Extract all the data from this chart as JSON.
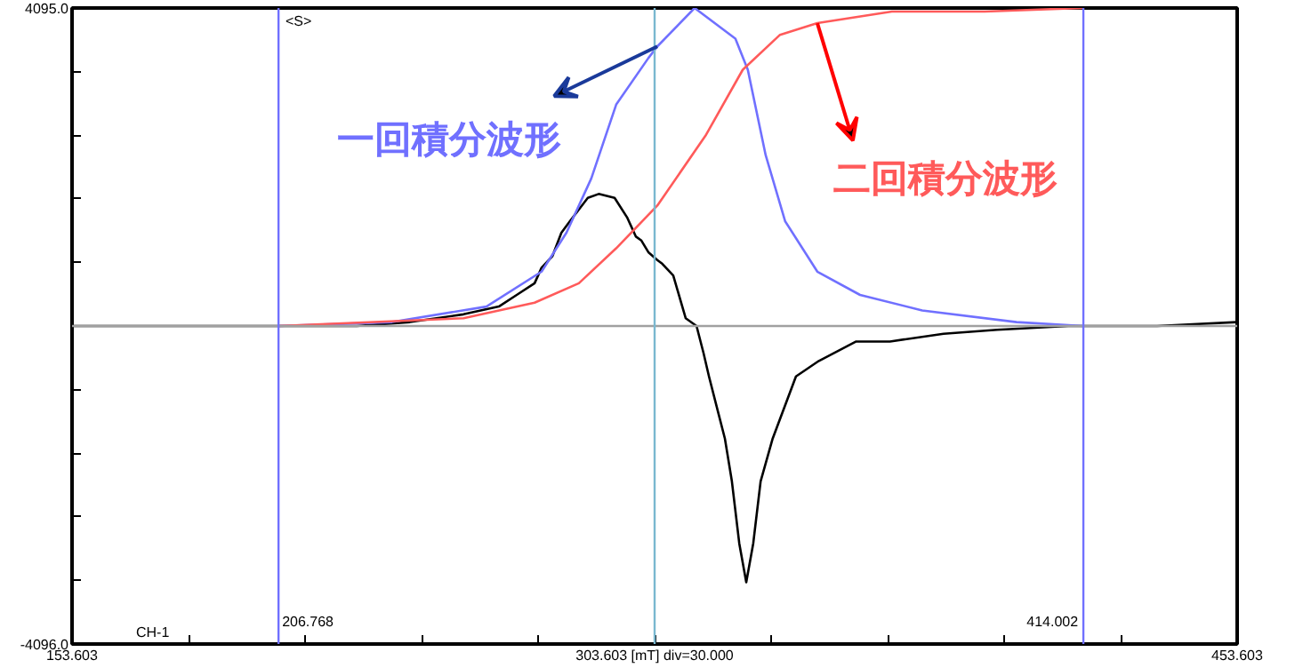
{
  "chart_data": {
    "type": "line",
    "xlim": [
      153.603,
      453.603
    ],
    "ylim": [
      -4096,
      4095
    ],
    "xticks": [
      153.603,
      {
        "value": 183.603,
        "label": null
      },
      {
        "value": 213.603,
        "label": null
      },
      {
        "value": 243.603,
        "label": null
      },
      {
        "value": 273.603,
        "label": null
      },
      {
        "value": 303.603,
        "label": "303.603 [mT] div=30.000"
      },
      {
        "value": 333.603,
        "label": null
      },
      {
        "value": 363.603,
        "label": null
      },
      {
        "value": 393.603,
        "label": null
      },
      {
        "value": 423.603,
        "label": null
      },
      453.603
    ],
    "yticks": [
      {
        "value": -4096,
        "label": "-4096.0"
      },
      {
        "value": -3277,
        "label": null
      },
      {
        "value": -2458,
        "label": null
      },
      {
        "value": -1638,
        "label": null
      },
      {
        "value": -819,
        "label": null
      },
      {
        "value": 0,
        "label": null
      },
      {
        "value": 819,
        "label": null
      },
      {
        "value": 1638,
        "label": null
      },
      {
        "value": 2457,
        "label": null
      },
      {
        "value": 3276,
        "label": null
      },
      {
        "value": 4095,
        "label": "4095.0"
      }
    ],
    "series": [
      {
        "color": "#000000",
        "x": [
          153.7,
          181.1,
          206.8,
          226.9,
          240.6,
          254.4,
          263.5,
          268.1,
          272.7,
          274.5,
          277.3,
          279.6,
          281.8,
          286.4,
          289.2,
          293.3,
          296.5,
          298.8,
          300.2,
          302.0,
          304.3,
          305.6,
          308.4,
          311.6,
          314.4,
          316.2,
          317.6,
          319.9,
          321.7,
          323.5,
          325.4,
          327.2,
          329.0,
          330.9,
          334.0,
          340.0,
          345.9,
          355.5,
          364.2,
          378.0,
          391.8,
          410.1,
          433.0,
          453.5
        ],
        "values": [
          0,
          0,
          0,
          0,
          50,
          150,
          250,
          400,
          550,
          750,
          900,
          1200,
          1350,
          1650,
          1700,
          1650,
          1400,
          1150,
          1100,
          950,
          850,
          800,
          650,
          100,
          0,
          -350,
          -650,
          -1100,
          -1450,
          -2000,
          -2800,
          -3300,
          -2800,
          -2000,
          -1450,
          -650,
          -450,
          -200,
          -200,
          -100,
          -50,
          0,
          0,
          50
        ]
      },
      {
        "name": "一回積分波形",
        "color": "#7070ff",
        "x": [
          206.8,
          236.0,
          260.3,
          274.5,
          280.9,
          287.3,
          293.7,
          302.0,
          304.3,
          313.9,
          324.4,
          327.6,
          332.2,
          337.2,
          345.5,
          356.5,
          372.5,
          396.8,
          414.0
        ],
        "values": [
          0,
          50,
          250,
          700,
          1200,
          1900,
          2850,
          3450,
          3600,
          4095,
          3700,
          3300,
          2200,
          1350,
          700,
          400,
          200,
          50,
          0
        ]
      },
      {
        "name": "二回積分波形",
        "color": "#ff5a5a",
        "x": [
          206.8,
          254.4,
          272.7,
          284.1,
          293.7,
          304.3,
          316.7,
          326.3,
          335.9,
          345.5,
          364.7,
          388.6,
          414.0
        ],
        "values": [
          0,
          100,
          300,
          550,
          1000,
          1550,
          2450,
          3300,
          3750,
          3900,
          4050,
          4050,
          4095
        ]
      }
    ],
    "ref_lines": [
      {
        "axis": "y",
        "value": 0,
        "color": "#a0a0a0"
      },
      {
        "axis": "x",
        "value": 303.603,
        "color": "#7ab8d0"
      },
      {
        "axis": "x",
        "value": 206.768,
        "label": "206.768",
        "color": "#7070ff"
      },
      {
        "axis": "x",
        "value": 414.002,
        "label": "414.002",
        "color": "#7070ff"
      }
    ],
    "annotations": [
      "<S>",
      "CH-1"
    ]
  }
}
